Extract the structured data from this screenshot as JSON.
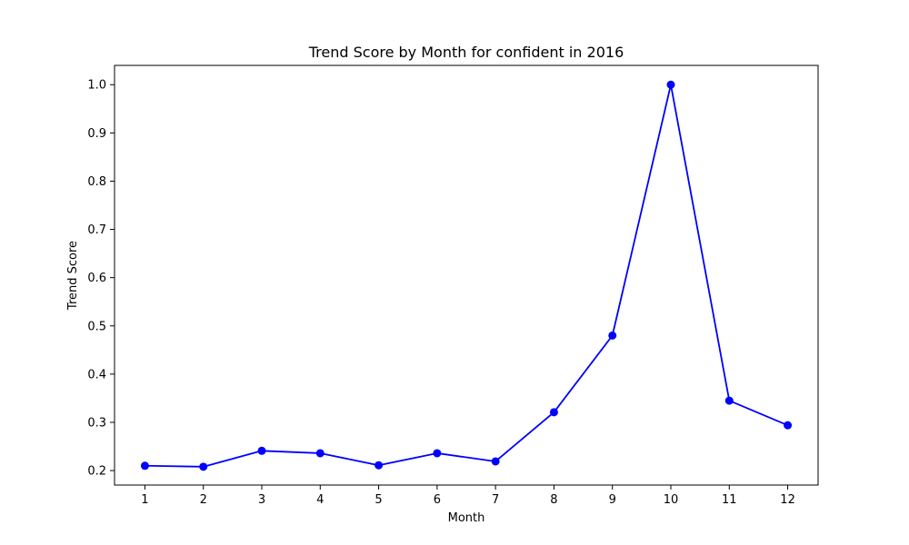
{
  "chart_data": {
    "type": "line",
    "title": "Trend Score by Month for confident in 2016",
    "xlabel": "Month",
    "ylabel": "Trend Score",
    "x": [
      1,
      2,
      3,
      4,
      5,
      6,
      7,
      8,
      9,
      10,
      11,
      12
    ],
    "x_tick_labels": [
      "1",
      "2",
      "3",
      "4",
      "5",
      "6",
      "7",
      "8",
      "9",
      "10",
      "11",
      "12"
    ],
    "y_ticks": [
      0.2,
      0.3,
      0.4,
      0.5,
      0.6,
      0.7,
      0.8,
      0.9,
      1.0
    ],
    "y_tick_labels": [
      "0.2",
      "0.3",
      "0.4",
      "0.5",
      "0.6",
      "0.7",
      "0.8",
      "0.9",
      "1.0"
    ],
    "xlim": [
      0.48,
      12.52
    ],
    "ylim": [
      0.17,
      1.04
    ],
    "grid": false,
    "series": [
      {
        "values": [
          0.21,
          0.208,
          0.241,
          0.236,
          0.211,
          0.236,
          0.219,
          0.321,
          0.48,
          1.0,
          0.345,
          0.294
        ],
        "color": "#0000ff",
        "marker": "circle"
      }
    ]
  }
}
